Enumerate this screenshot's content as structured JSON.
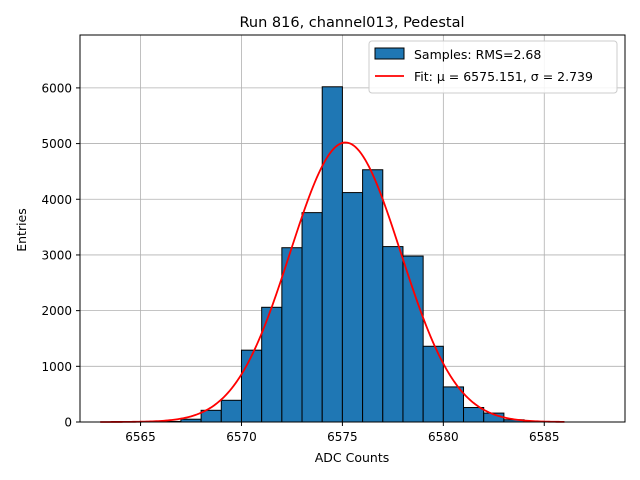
{
  "chart_data": {
    "type": "bar",
    "title": "Run 816, channel013, Pedestal",
    "xlabel": "ADC Counts",
    "ylabel": "Entries",
    "xlim": [
      6562,
      6589
    ],
    "ylim": [
      0,
      6950
    ],
    "grid": true,
    "legend_placement": "top-right",
    "x_ticks": [
      6565,
      6570,
      6575,
      6580,
      6585
    ],
    "y_ticks": [
      0,
      1000,
      2000,
      3000,
      4000,
      5000,
      6000
    ],
    "series": [
      {
        "name": "Samples: RMS=2.68",
        "kind": "histogram",
        "bin_edges": [
          6566,
          6567,
          6568,
          6569,
          6570,
          6571,
          6572,
          6573,
          6574,
          6575,
          6576,
          6577,
          6578,
          6579,
          6580,
          6581,
          6582,
          6583,
          6584
        ],
        "counts": [
          10,
          50,
          210,
          390,
          1290,
          2060,
          3130,
          3760,
          6020,
          4120,
          4530,
          3150,
          2980,
          1360,
          630,
          260,
          160,
          40
        ],
        "color": "#1f77b4",
        "edge_color": "#000000"
      },
      {
        "name": "Fit: μ = 6575.151, σ = 2.739",
        "kind": "gaussian_fit",
        "mu": 6575.151,
        "sigma": 2.739,
        "amplitude": 5020,
        "x_range": [
          6563,
          6586
        ],
        "color": "#ff0000"
      }
    ]
  },
  "legend": {
    "hist_label": "Samples: RMS=2.68",
    "fit_label": "Fit: μ = 6575.151, σ = 2.739"
  }
}
